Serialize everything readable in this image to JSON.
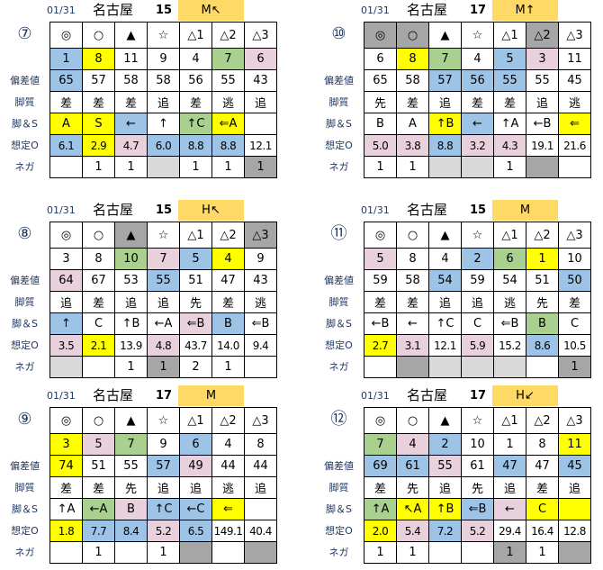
{
  "row_labels": {
    "deviation": "偏差値",
    "style": "脚質",
    "leg_s": "脚＆S",
    "odds": "想定O",
    "nega": "ネガ"
  },
  "colors": {
    "b": "#9dc3e6",
    "y": "#ffff00",
    "g": "#a9d08e",
    "p": "#e8d0dc",
    "d": "#a6a6a6",
    "l": "#d9d9d9",
    "badge": "#ffd966"
  },
  "panels": [
    {
      "race": "⑦",
      "date": "01/31",
      "venue": "名古屋",
      "count": "15",
      "badge": "M↖",
      "marks": [
        [
          "◎",
          ""
        ],
        [
          "○",
          ""
        ],
        [
          "▲",
          ""
        ],
        [
          "☆",
          ""
        ],
        [
          "△1",
          ""
        ],
        [
          "△2",
          ""
        ],
        [
          "△3",
          ""
        ]
      ],
      "numbers": [
        [
          "1",
          "b"
        ],
        [
          "8",
          "y"
        ],
        [
          "11",
          ""
        ],
        [
          "9",
          ""
        ],
        [
          "4",
          ""
        ],
        [
          "7",
          "g"
        ],
        [
          "6",
          "p"
        ]
      ],
      "deviation": [
        [
          "65",
          "b"
        ],
        [
          "57",
          ""
        ],
        [
          "58",
          ""
        ],
        [
          "58",
          ""
        ],
        [
          "56",
          ""
        ],
        [
          "55",
          ""
        ],
        [
          "43",
          ""
        ]
      ],
      "style": [
        [
          "差",
          ""
        ],
        [
          "差",
          ""
        ],
        [
          "差",
          ""
        ],
        [
          "追",
          ""
        ],
        [
          "差",
          ""
        ],
        [
          "逃",
          ""
        ],
        [
          "追",
          ""
        ]
      ],
      "leg_s": [
        [
          "A",
          "y"
        ],
        [
          "S",
          "y"
        ],
        [
          "←",
          "b"
        ],
        [
          "↑",
          ""
        ],
        [
          "↑C",
          "g"
        ],
        [
          "⇐A",
          "y"
        ],
        [
          "",
          ""
        ]
      ],
      "odds": [
        [
          "6.1",
          "b"
        ],
        [
          "2.9",
          "y"
        ],
        [
          "4.7",
          "p"
        ],
        [
          "6.0",
          "b"
        ],
        [
          "8.8",
          "b"
        ],
        [
          "8.8",
          "b"
        ],
        [
          "12.1",
          ""
        ]
      ],
      "nega": [
        [
          "",
          ""
        ],
        [
          "1",
          ""
        ],
        [
          "1",
          ""
        ],
        [
          "",
          "l"
        ],
        [
          "1",
          ""
        ],
        [
          "1",
          ""
        ],
        [
          "1",
          "d"
        ]
      ]
    },
    {
      "race": "⑩",
      "date": "01/31",
      "venue": "名古屋",
      "count": "17",
      "badge": "M↑",
      "marks": [
        [
          "◎",
          "d"
        ],
        [
          "○",
          "d"
        ],
        [
          "▲",
          ""
        ],
        [
          "☆",
          ""
        ],
        [
          "△1",
          ""
        ],
        [
          "△2",
          "d"
        ],
        [
          "△3",
          ""
        ]
      ],
      "numbers": [
        [
          "6",
          ""
        ],
        [
          "8",
          "y"
        ],
        [
          "7",
          "g"
        ],
        [
          "4",
          ""
        ],
        [
          "5",
          "b"
        ],
        [
          "3",
          "p"
        ],
        [
          "11",
          ""
        ]
      ],
      "deviation": [
        [
          "65",
          ""
        ],
        [
          "58",
          ""
        ],
        [
          "57",
          "b"
        ],
        [
          "56",
          "b"
        ],
        [
          "55",
          "b"
        ],
        [
          "55",
          ""
        ],
        [
          "45",
          ""
        ]
      ],
      "style": [
        [
          "先",
          ""
        ],
        [
          "差",
          ""
        ],
        [
          "追",
          ""
        ],
        [
          "差",
          ""
        ],
        [
          "差",
          ""
        ],
        [
          "追",
          ""
        ],
        [
          "逃",
          ""
        ]
      ],
      "leg_s": [
        [
          "B",
          ""
        ],
        [
          "A",
          ""
        ],
        [
          "↑B",
          "y"
        ],
        [
          "←",
          "b"
        ],
        [
          "↑A",
          ""
        ],
        [
          "←B",
          ""
        ],
        [
          "⇐",
          "y"
        ]
      ],
      "odds": [
        [
          "5.0",
          "p"
        ],
        [
          "3.8",
          "p"
        ],
        [
          "8.8",
          "b"
        ],
        [
          "3.2",
          "p"
        ],
        [
          "4.3",
          "p"
        ],
        [
          "19.1",
          ""
        ],
        [
          "21.6",
          ""
        ]
      ],
      "nega": [
        [
          "1",
          ""
        ],
        [
          "1",
          ""
        ],
        [
          "",
          "l"
        ],
        [
          "",
          "l"
        ],
        [
          "1",
          ""
        ],
        [
          "",
          "d"
        ],
        [
          "",
          ""
        ]
      ]
    },
    {
      "race": "⑧",
      "date": "01/31",
      "venue": "名古屋",
      "count": "15",
      "badge": "H↖",
      "marks": [
        [
          "◎",
          ""
        ],
        [
          "○",
          ""
        ],
        [
          "▲",
          "d"
        ],
        [
          "☆",
          ""
        ],
        [
          "△1",
          ""
        ],
        [
          "△2",
          ""
        ],
        [
          "△3",
          "d"
        ]
      ],
      "numbers": [
        [
          "3",
          ""
        ],
        [
          "8",
          ""
        ],
        [
          "10",
          "g"
        ],
        [
          "7",
          "p"
        ],
        [
          "5",
          "b"
        ],
        [
          "4",
          "y"
        ],
        [
          "9",
          ""
        ]
      ],
      "deviation": [
        [
          "64",
          "p"
        ],
        [
          "67",
          ""
        ],
        [
          "53",
          ""
        ],
        [
          "55",
          "b"
        ],
        [
          "51",
          ""
        ],
        [
          "47",
          ""
        ],
        [
          "43",
          ""
        ]
      ],
      "style": [
        [
          "追",
          ""
        ],
        [
          "差",
          ""
        ],
        [
          "追",
          ""
        ],
        [
          "追",
          ""
        ],
        [
          "先",
          ""
        ],
        [
          "差",
          ""
        ],
        [
          "逃",
          ""
        ]
      ],
      "leg_s": [
        [
          "↑",
          "b"
        ],
        [
          "C",
          ""
        ],
        [
          "↑B",
          ""
        ],
        [
          "←A",
          ""
        ],
        [
          "⇐B",
          "p"
        ],
        [
          "B",
          "b"
        ],
        [
          "⇐B",
          ""
        ]
      ],
      "odds": [
        [
          "3.5",
          "p"
        ],
        [
          "2.1",
          "y"
        ],
        [
          "13.9",
          ""
        ],
        [
          "4.8",
          "p"
        ],
        [
          "43.7",
          ""
        ],
        [
          "14.0",
          ""
        ],
        [
          "9.4",
          ""
        ]
      ],
      "nega": [
        [
          "",
          "l"
        ],
        [
          "",
          ""
        ],
        [
          "1",
          ""
        ],
        [
          "1",
          "d"
        ],
        [
          "2",
          ""
        ],
        [
          "1",
          ""
        ],
        [
          "",
          ""
        ]
      ]
    },
    {
      "race": "⑪",
      "date": "01/31",
      "venue": "名古屋",
      "count": "15",
      "badge": "M",
      "marks": [
        [
          "◎",
          ""
        ],
        [
          "○",
          ""
        ],
        [
          "▲",
          ""
        ],
        [
          "☆",
          ""
        ],
        [
          "△1",
          ""
        ],
        [
          "△2",
          ""
        ],
        [
          "△3",
          ""
        ]
      ],
      "numbers": [
        [
          "5",
          "p"
        ],
        [
          "8",
          ""
        ],
        [
          "4",
          ""
        ],
        [
          "2",
          "b"
        ],
        [
          "6",
          "g"
        ],
        [
          "1",
          "y"
        ],
        [
          "10",
          ""
        ]
      ],
      "deviation": [
        [
          "59",
          ""
        ],
        [
          "58",
          ""
        ],
        [
          "54",
          "b"
        ],
        [
          "59",
          ""
        ],
        [
          "54",
          ""
        ],
        [
          "51",
          ""
        ],
        [
          "50",
          "b"
        ]
      ],
      "style": [
        [
          "差",
          ""
        ],
        [
          "差",
          ""
        ],
        [
          "追",
          ""
        ],
        [
          "追",
          ""
        ],
        [
          "逃",
          ""
        ],
        [
          "先",
          ""
        ],
        [
          "差",
          ""
        ]
      ],
      "leg_s": [
        [
          "←B",
          ""
        ],
        [
          "←",
          ""
        ],
        [
          "↑C",
          ""
        ],
        [
          "C",
          ""
        ],
        [
          "⇐B",
          ""
        ],
        [
          "B",
          "g"
        ],
        [
          "C",
          ""
        ]
      ],
      "odds": [
        [
          "2.7",
          "y"
        ],
        [
          "3.1",
          "p"
        ],
        [
          "12.1",
          ""
        ],
        [
          "5.9",
          "p"
        ],
        [
          "15.2",
          ""
        ],
        [
          "8.6",
          "b"
        ],
        [
          "10.5",
          ""
        ]
      ],
      "nega": [
        [
          "",
          ""
        ],
        [
          "",
          "d"
        ],
        [
          "",
          "l"
        ],
        [
          "",
          "l"
        ],
        [
          "",
          "l"
        ],
        [
          "",
          ""
        ],
        [
          "1",
          "d"
        ]
      ]
    },
    {
      "race": "⑨",
      "date": "01/31",
      "venue": "名古屋",
      "count": "17",
      "badge": "M",
      "marks": [
        [
          "◎",
          ""
        ],
        [
          "○",
          ""
        ],
        [
          "▲",
          ""
        ],
        [
          "☆",
          ""
        ],
        [
          "△1",
          ""
        ],
        [
          "△2",
          ""
        ],
        [
          "△3",
          ""
        ]
      ],
      "numbers": [
        [
          "3",
          "y"
        ],
        [
          "5",
          "p"
        ],
        [
          "7",
          "g"
        ],
        [
          "9",
          ""
        ],
        [
          "6",
          "b"
        ],
        [
          "4",
          ""
        ],
        [
          "8",
          ""
        ]
      ],
      "deviation": [
        [
          "74",
          "y"
        ],
        [
          "51",
          ""
        ],
        [
          "55",
          ""
        ],
        [
          "57",
          "b"
        ],
        [
          "49",
          "p"
        ],
        [
          "44",
          ""
        ],
        [
          "44",
          ""
        ]
      ],
      "style": [
        [
          "差",
          ""
        ],
        [
          "差",
          ""
        ],
        [
          "先",
          ""
        ],
        [
          "追",
          ""
        ],
        [
          "追",
          ""
        ],
        [
          "逃",
          ""
        ],
        [
          "追",
          ""
        ]
      ],
      "leg_s": [
        [
          "↑A",
          ""
        ],
        [
          "←A",
          "g"
        ],
        [
          "B",
          "p"
        ],
        [
          "↑C",
          "b"
        ],
        [
          "←C",
          "b"
        ],
        [
          "⇐",
          "y"
        ],
        [
          "",
          ""
        ]
      ],
      "odds": [
        [
          "1.8",
          "y"
        ],
        [
          "7.7",
          "b"
        ],
        [
          "8.4",
          "b"
        ],
        [
          "5.2",
          "p"
        ],
        [
          "6.5",
          "b"
        ],
        [
          "149.1",
          ""
        ],
        [
          "40.4",
          ""
        ]
      ],
      "nega": [
        [
          "",
          ""
        ],
        [
          "1",
          ""
        ],
        [
          "",
          ""
        ],
        [
          "1",
          ""
        ],
        [
          "",
          "d"
        ],
        [
          "",
          ""
        ],
        [
          "",
          "d"
        ]
      ]
    },
    {
      "race": "⑫",
      "date": "01/31",
      "venue": "名古屋",
      "count": "17",
      "badge": "H↙",
      "marks": [
        [
          "◎",
          ""
        ],
        [
          "○",
          ""
        ],
        [
          "▲",
          ""
        ],
        [
          "☆",
          ""
        ],
        [
          "△1",
          ""
        ],
        [
          "△2",
          ""
        ],
        [
          "△3",
          ""
        ]
      ],
      "numbers": [
        [
          "7",
          "g"
        ],
        [
          "4",
          "p"
        ],
        [
          "2",
          "b"
        ],
        [
          "10",
          ""
        ],
        [
          "1",
          ""
        ],
        [
          "8",
          ""
        ],
        [
          "11",
          "y"
        ]
      ],
      "deviation": [
        [
          "69",
          "b"
        ],
        [
          "61",
          "b"
        ],
        [
          "55",
          "p"
        ],
        [
          "61",
          ""
        ],
        [
          "47",
          "b"
        ],
        [
          "47",
          ""
        ],
        [
          "45",
          "b"
        ]
      ],
      "style": [
        [
          "差",
          ""
        ],
        [
          "先",
          ""
        ],
        [
          "追",
          ""
        ],
        [
          "先",
          ""
        ],
        [
          "追",
          ""
        ],
        [
          "差",
          ""
        ],
        [
          "追",
          ""
        ]
      ],
      "leg_s": [
        [
          "↑A",
          "g"
        ],
        [
          "↖A",
          "y"
        ],
        [
          "↑B",
          "y"
        ],
        [
          "⇐B",
          "b"
        ],
        [
          "←",
          "p"
        ],
        [
          "C",
          "y"
        ],
        [
          "",
          "y"
        ]
      ],
      "odds": [
        [
          "2.0",
          "y"
        ],
        [
          "5.4",
          "p"
        ],
        [
          "7.2",
          "b"
        ],
        [
          "5.2",
          "p"
        ],
        [
          "29.4",
          ""
        ],
        [
          "16.4",
          ""
        ],
        [
          "12.8",
          ""
        ]
      ],
      "nega": [
        [
          "1",
          ""
        ],
        [
          "1",
          ""
        ],
        [
          "",
          ""
        ],
        [
          "",
          ""
        ],
        [
          "1",
          "d"
        ],
        [
          "1",
          ""
        ],
        [
          "",
          "d"
        ]
      ]
    }
  ]
}
